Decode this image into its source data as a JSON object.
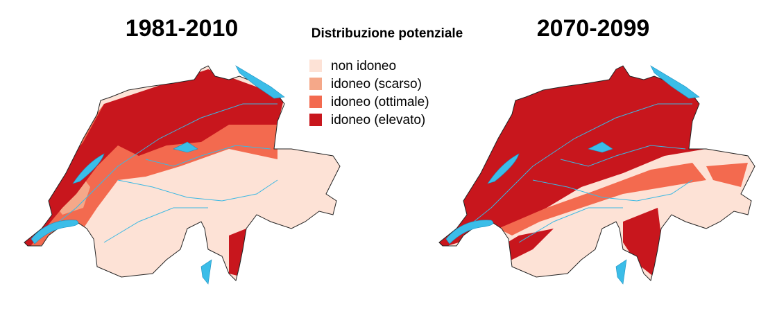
{
  "maps": [
    {
      "title": "1981-2010"
    },
    {
      "title": "2070-2099"
    }
  ],
  "legend": {
    "title": "Distribuzione potenziale",
    "items": [
      {
        "label": "non idoneo",
        "color": "#fde2d6"
      },
      {
        "label": "idoneo (scarso)",
        "color": "#f5a889"
      },
      {
        "label": "idoneo (ottimale)",
        "color": "#f36a4f"
      },
      {
        "label": "idoneo (elevato)",
        "color": "#c8161d"
      }
    ]
  }
}
